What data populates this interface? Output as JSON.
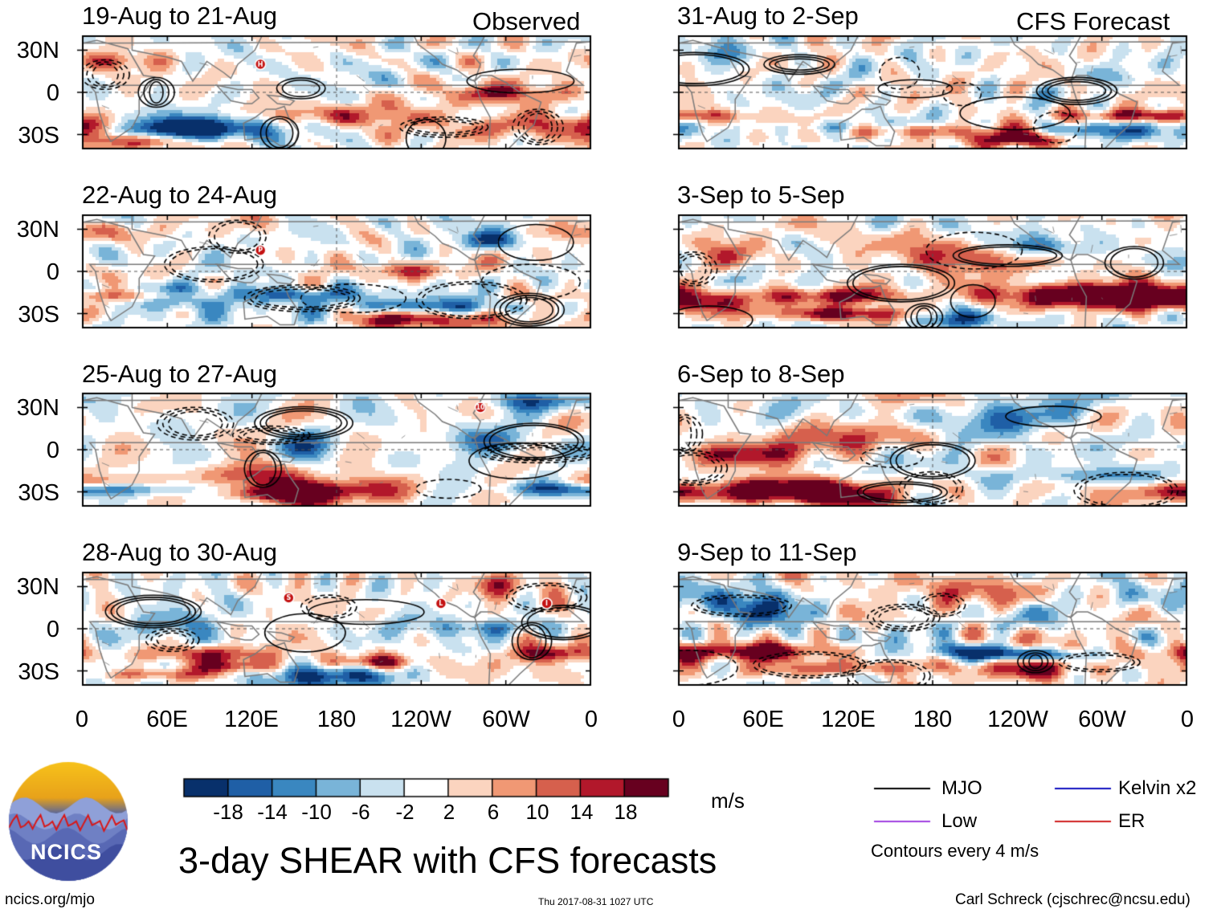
{
  "chart_data": {
    "type": "heatmap",
    "title": "3-day SHEAR with CFS forecasts",
    "units": "m/s",
    "variable": "SHEAR",
    "x_ticks": [
      "0",
      "60E",
      "120E",
      "180",
      "120W",
      "60W",
      "0"
    ],
    "y_ticks": [
      "30N",
      "0",
      "30S"
    ],
    "observed_label": "Observed",
    "forecast_label": "CFS Forecast",
    "observed_panels": [
      {
        "title": "19-Aug to 21-Aug",
        "storms": [
          {
            "lon": 126,
            "lat": 20,
            "label": "H"
          }
        ]
      },
      {
        "title": "22-Aug to 24-Aug",
        "storms": [
          {
            "lon": 126,
            "lat": 15,
            "label": "P"
          }
        ]
      },
      {
        "title": "25-Aug to 27-Aug",
        "storms": [
          {
            "lon": 282,
            "lat": 30,
            "label": "10"
          }
        ]
      },
      {
        "title": "28-Aug to 30-Aug",
        "storms": [
          {
            "lon": 146,
            "lat": 22,
            "label": "S"
          },
          {
            "lon": 254,
            "lat": 18,
            "label": "L"
          },
          {
            "lon": 329,
            "lat": 18,
            "label": "I"
          }
        ]
      }
    ],
    "forecast_panels": [
      {
        "title": "31-Aug to 2-Sep"
      },
      {
        "title": "3-Sep to 5-Sep"
      },
      {
        "title": "6-Sep to 8-Sep"
      },
      {
        "title": "9-Sep to 11-Sep"
      }
    ],
    "colorbar": {
      "levels": [
        "-18",
        "-14",
        "-10",
        "-6",
        "-2",
        "2",
        "6",
        "10",
        "14",
        "18"
      ],
      "colors": [
        "#08306b",
        "#1f5fa6",
        "#3a87c0",
        "#79b4d8",
        "#c9e1ef",
        "#ffffff",
        "#fbd4bf",
        "#f09874",
        "#d6604d",
        "#b2182b",
        "#67001f"
      ]
    },
    "legend": [
      {
        "label": "MJO",
        "color": "#000000"
      },
      {
        "label": "Kelvin x2",
        "color": "#1010c0"
      },
      {
        "label": "Low",
        "color": "#a040e0"
      },
      {
        "label": "ER",
        "color": "#d02020"
      }
    ],
    "contour_note": "Contours every 4 m/s"
  },
  "branding": {
    "logo_text": "NCICS",
    "url": "ncics.org/mjo",
    "timestamp": "Thu 2017-08-31 1027 UTC",
    "author": "Carl Schreck (cjschrec@ncsu.edu)"
  }
}
